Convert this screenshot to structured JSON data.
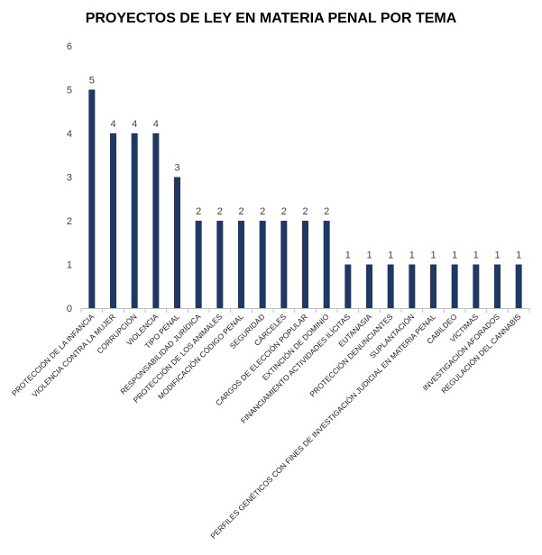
{
  "chart_data": {
    "type": "bar",
    "title": "PROYECTOS DE LEY EN MATERIA PENAL POR TEMA",
    "xlabel": "",
    "ylabel": "",
    "ylim": [
      0,
      6
    ],
    "yticks": [
      "0",
      "1",
      "2",
      "3",
      "4",
      "5",
      "6"
    ],
    "grid": false,
    "bar_color": "#1f3864",
    "categories": [
      "PROTECCIÓN DE LA INFANCIA",
      "VIOLENCIA CONTRA LA MUJER",
      "CORRUPCIÓN",
      "VIOLENCIA",
      "TIPO PENAL",
      "RESPONSABILIDAD JURÍDICA",
      "PROTECCIÓN DE LOS ANIMALES",
      "MODIFICACIÓN CÓDIGO PENAL",
      "SEGURIDAD",
      "CÁRCELES",
      "CARGOS DE ELECCIÓN POPULAR",
      "EXTINCIÓN DE DOMINIO",
      "FINANCIAMIENTO ACTIVIDADES ILÍCITAS",
      "EUTANASIA",
      "PROTECCIÓN DENUNCIANTES",
      "SUPLANTACIÓN",
      "PERFILES GENÉTICOS CON FINES DE INVESTIGACIÓN JUDICIAL EN MATERIA PENAL",
      "CABILDEO",
      "VÍCTIMAS",
      "INVESTIGACIÓN AFORADOS",
      "REGULACIÓN DEL CANNABIS"
    ],
    "values": [
      5,
      4,
      4,
      4,
      3,
      2,
      2,
      2,
      2,
      2,
      2,
      2,
      1,
      1,
      1,
      1,
      1,
      1,
      1,
      1,
      1
    ],
    "data_labels": [
      "5",
      "4",
      "4",
      "4",
      "3",
      "2",
      "2",
      "2",
      "2",
      "2",
      "2",
      "2",
      "1",
      "1",
      "1",
      "1",
      "1",
      "1",
      "1",
      "1",
      "1"
    ]
  }
}
